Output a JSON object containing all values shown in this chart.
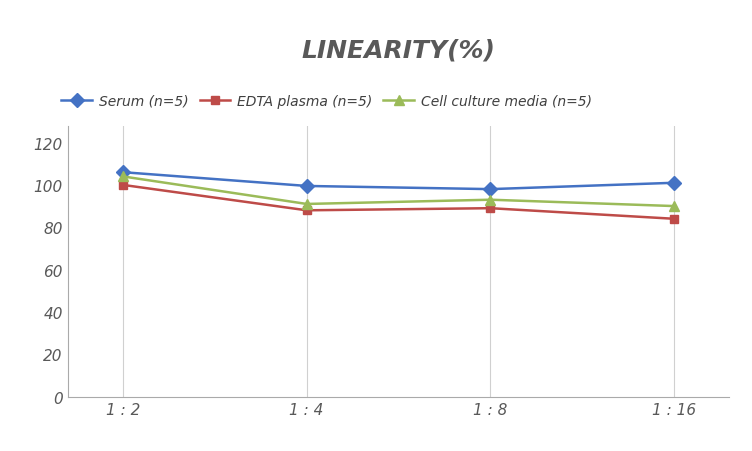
{
  "title": "LINEARITY(%)",
  "x_labels": [
    "1 : 2",
    "1 : 4",
    "1 : 8",
    "1 : 16"
  ],
  "x_positions": [
    0,
    1,
    2,
    3
  ],
  "series": [
    {
      "label": "Serum (n=5)",
      "values": [
        106,
        99.5,
        98,
        101
      ],
      "color": "#4472C4",
      "marker": "D",
      "marker_size": 7,
      "linewidth": 1.8
    },
    {
      "label": "EDTA plasma (n=5)",
      "values": [
        100,
        88,
        89,
        84
      ],
      "color": "#BE4B48",
      "marker": "s",
      "marker_size": 6,
      "linewidth": 1.8
    },
    {
      "label": "Cell culture media (n=5)",
      "values": [
        104,
        91,
        93,
        90
      ],
      "color": "#9BBB59",
      "marker": "^",
      "marker_size": 7,
      "linewidth": 1.8
    }
  ],
  "ylim": [
    0,
    128
  ],
  "yticks": [
    0,
    20,
    40,
    60,
    80,
    100,
    120
  ],
  "title_fontsize": 18,
  "legend_fontsize": 10,
  "tick_fontsize": 11,
  "title_color": "#595959",
  "tick_color": "#595959",
  "background_color": "#ffffff",
  "grid_color": "#d0d0d0",
  "spine_color": "#aaaaaa"
}
